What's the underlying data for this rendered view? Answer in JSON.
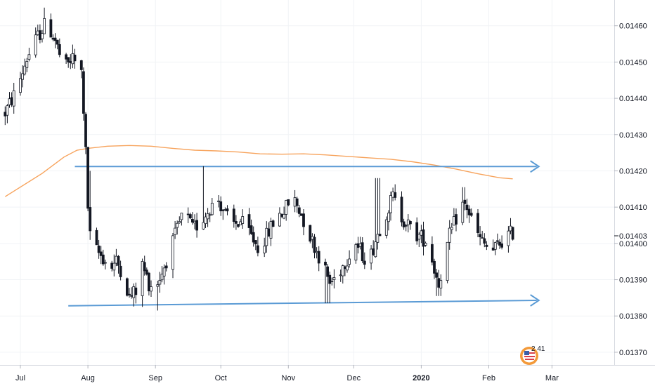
{
  "chart_data": {
    "type": "candlestick",
    "title": "",
    "xlabel": "",
    "ylabel": "",
    "ylim": [
      0.013665,
      0.014671
    ],
    "y_ticks": [
      "0.01460",
      "0.01450",
      "0.01440",
      "0.01430",
      "0.01420",
      "0.01410",
      "0.01400",
      "0.01390",
      "0.01380",
      "0.01370"
    ],
    "last_price_label": "0.01403",
    "x_ticks": [
      {
        "label": "Jul",
        "day": 0,
        "bold": false
      },
      {
        "label": "Aug",
        "day": 31,
        "bold": false
      },
      {
        "label": "Sep",
        "day": 62,
        "bold": false
      },
      {
        "label": "Oct",
        "day": 92,
        "bold": false
      },
      {
        "label": "Nov",
        "day": 123,
        "bold": false
      },
      {
        "label": "Dec",
        "day": 153,
        "bold": false
      },
      {
        "label": "2020",
        "day": 184,
        "bold": true
      },
      {
        "label": "Feb",
        "day": 215,
        "bold": false
      },
      {
        "label": "Mar",
        "day": 244,
        "bold": false
      }
    ],
    "series": [
      {
        "type": "candlestick",
        "close_path": [
          [
            -7,
            0.01436
          ],
          [
            -2,
            0.01442
          ],
          [
            3,
            0.01451
          ],
          [
            8,
            0.01457
          ],
          [
            12,
            0.01461
          ],
          [
            16,
            0.01456
          ],
          [
            20,
            0.01448
          ],
          [
            24,
            0.01451
          ],
          [
            28,
            0.01447
          ],
          [
            29,
            0.01437
          ],
          [
            30,
            0.01425
          ],
          [
            31,
            0.0141
          ],
          [
            32,
            0.01402
          ],
          [
            35,
            0.01398
          ],
          [
            38,
            0.01396
          ],
          [
            41,
            0.01393
          ],
          [
            44,
            0.01395
          ],
          [
            47,
            0.01392
          ],
          [
            50,
            0.01385
          ],
          [
            53,
            0.01387
          ],
          [
            56,
            0.01394
          ],
          [
            59,
            0.01389
          ],
          [
            62,
            0.01388
          ],
          [
            65,
            0.01392
          ],
          [
            68,
            0.01397
          ],
          [
            71,
            0.01402
          ],
          [
            75,
            0.01409
          ],
          [
            79,
            0.01404
          ],
          [
            83,
            0.01406
          ],
          [
            87,
            0.0141
          ],
          [
            91,
            0.01412
          ],
          [
            94,
            0.01408
          ],
          [
            97,
            0.01405
          ],
          [
            101,
            0.01406
          ],
          [
            105,
            0.01403
          ],
          [
            109,
            0.01399
          ],
          [
            113,
            0.01402
          ],
          [
            117,
            0.01407
          ],
          [
            121,
            0.01409
          ],
          [
            125,
            0.01413
          ],
          [
            129,
            0.01408
          ],
          [
            133,
            0.01402
          ],
          [
            136,
            0.01398
          ],
          [
            139,
            0.01394
          ],
          [
            142,
            0.01389
          ],
          [
            145,
            0.01391
          ],
          [
            148,
            0.01394
          ],
          [
            151,
            0.01397
          ],
          [
            154,
            0.014
          ],
          [
            157,
            0.01397
          ],
          [
            160,
            0.01395
          ],
          [
            163,
            0.01401
          ],
          [
            166,
            0.01406
          ],
          [
            169,
            0.0141
          ],
          [
            171,
            0.01413
          ],
          [
            174,
            0.01408
          ],
          [
            177,
            0.01406
          ],
          [
            180,
            0.01403
          ],
          [
            183,
            0.01402
          ],
          [
            186,
            0.01401
          ],
          [
            188,
            0.01398
          ],
          [
            190,
            0.01393
          ],
          [
            192,
            0.01389
          ],
          [
            194,
            0.01394
          ],
          [
            197,
            0.01402
          ],
          [
            200,
            0.01407
          ],
          [
            202,
            0.01411
          ],
          [
            205,
            0.0141
          ],
          [
            208,
            0.01405
          ],
          [
            211,
            0.01401
          ],
          [
            214,
            0.01399
          ],
          [
            217,
            0.01398
          ],
          [
            220,
            0.014
          ],
          [
            223,
            0.01402
          ],
          [
            226,
            0.01403
          ]
        ],
        "low_anchors": [
          [
            55,
            0.013825
          ],
          [
            62,
            0.013815
          ],
          [
            141,
            0.013835
          ],
          [
            192,
            0.013855
          ]
        ],
        "high_anchors": [
          [
            12,
            0.01465
          ],
          [
            33,
            0.0142
          ],
          [
            83,
            0.014213
          ],
          [
            164,
            0.01418
          ],
          [
            203,
            0.014155
          ]
        ]
      },
      {
        "type": "line",
        "color": "#f7a35c",
        "points": [
          [
            -7,
            0.014129
          ],
          [
            10,
            0.014193
          ],
          [
            20,
            0.014238
          ],
          [
            26,
            0.014257
          ],
          [
            31,
            0.014262
          ],
          [
            40,
            0.014268
          ],
          [
            50,
            0.01427
          ],
          [
            60,
            0.014268
          ],
          [
            70,
            0.014262
          ],
          [
            80,
            0.014257
          ],
          [
            90,
            0.014255
          ],
          [
            100,
            0.014252
          ],
          [
            110,
            0.014247
          ],
          [
            120,
            0.014246
          ],
          [
            130,
            0.014247
          ],
          [
            140,
            0.014244
          ],
          [
            150,
            0.01424
          ],
          [
            160,
            0.014236
          ],
          [
            170,
            0.014232
          ],
          [
            180,
            0.014225
          ],
          [
            190,
            0.014216
          ],
          [
            200,
            0.014205
          ],
          [
            210,
            0.014192
          ],
          [
            220,
            0.014181
          ],
          [
            226,
            0.014178
          ]
        ]
      },
      {
        "type": "line",
        "color": "#5b9bd5",
        "arrow": true,
        "points": [
          [
            25,
            0.014212
          ],
          [
            237,
            0.014212
          ]
        ]
      },
      {
        "type": "line",
        "color": "#5b9bd5",
        "arrow": true,
        "points": [
          [
            22,
            0.013828
          ],
          [
            237,
            0.013843
          ]
        ]
      }
    ]
  },
  "badge": {
    "text": "2 41"
  }
}
